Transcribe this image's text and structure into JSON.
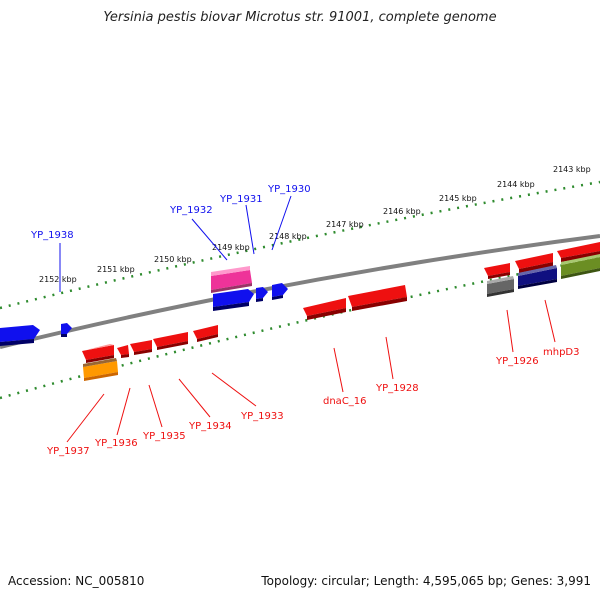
{
  "title": "Yersinia pestis biovar Microtus str. 91001, complete genome",
  "footer": {
    "accession": "Accession: NC_005810",
    "info": "Topology: circular; Length: 4,595,065 bp; Genes: 3,991"
  },
  "scale_labels": [
    "2143 kbp",
    "2144 kbp",
    "2145 kbp",
    "2146 kbp",
    "2147 kbp",
    "2148 kbp",
    "2149 kbp",
    "2150 kbp",
    "2151 kbp",
    "2152 kbp"
  ],
  "genes_forward": [
    "YP_1938",
    "YP_1932",
    "YP_1931",
    "YP_1930"
  ],
  "genes_reverse": [
    "YP_1937",
    "YP_1936",
    "YP_1935",
    "YP_1934",
    "YP_1933",
    "dnaC_16",
    "YP_1928",
    "YP_1926",
    "mhpD3"
  ],
  "colors": {
    "forward": "#1010ee",
    "reverse": "#ee1010",
    "pink": "#ee3399",
    "orange": "#ff9900",
    "gray": "#666666",
    "navy": "#101080",
    "olive": "#6b8e23",
    "scale": "#2e8b2e",
    "backbone": "#808080"
  }
}
